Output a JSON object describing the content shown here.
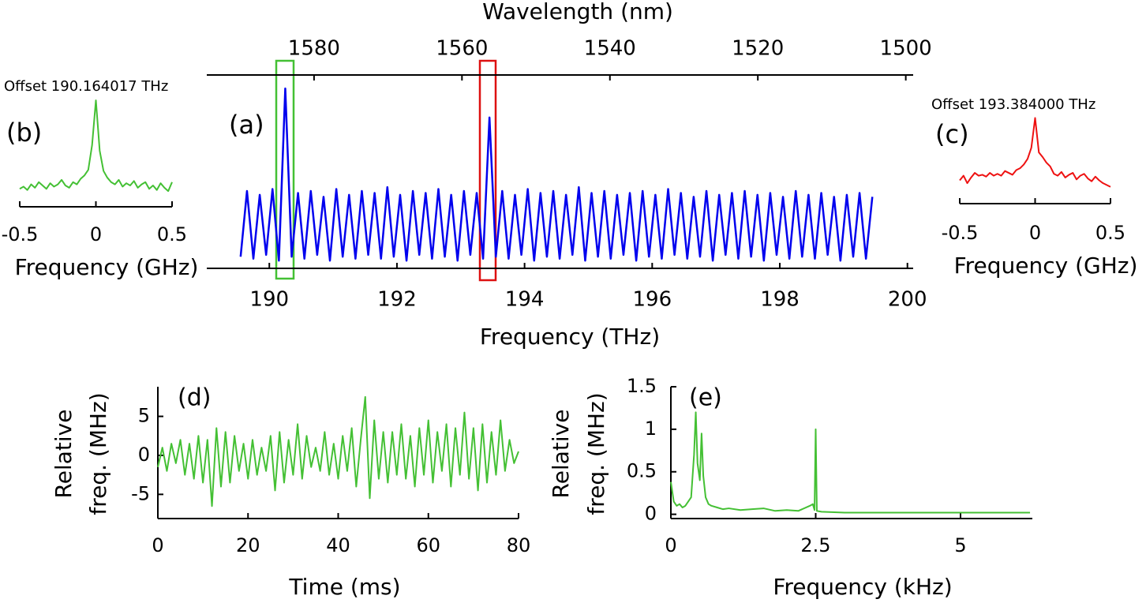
{
  "chart_data": [
    {
      "type": "line",
      "panel_label": "(a)",
      "xlabel": "Frequency (THz)",
      "x2label": "Wavelength (nm)",
      "xlim": [
        189.02,
        200.09
      ],
      "xticks": [
        190,
        192,
        194,
        196,
        198,
        200
      ],
      "x2lim": [
        1594.5,
        1499.0
      ],
      "x2ticks": [
        1580,
        1560,
        1540,
        1520,
        1500
      ],
      "ylim": [
        0,
        1
      ],
      "color": "#0000ee",
      "x": [
        189.55,
        189.65,
        189.75,
        189.85,
        189.95,
        190.05,
        190.15,
        190.25,
        190.35,
        190.45,
        190.55,
        190.65,
        190.75,
        190.85,
        190.95,
        191.05,
        191.15,
        191.25,
        191.35,
        191.45,
        191.55,
        191.65,
        191.75,
        191.85,
        191.95,
        192.05,
        192.15,
        192.25,
        192.35,
        192.45,
        192.55,
        192.65,
        192.75,
        192.85,
        192.95,
        193.05,
        193.15,
        193.25,
        193.35,
        193.45,
        193.55,
        193.65,
        193.75,
        193.85,
        193.95,
        194.05,
        194.15,
        194.25,
        194.35,
        194.45,
        194.55,
        194.65,
        194.75,
        194.85,
        194.95,
        195.05,
        195.15,
        195.25,
        195.35,
        195.45,
        195.55,
        195.65,
        195.75,
        195.85,
        195.95,
        196.05,
        196.15,
        196.25,
        196.35,
        196.45,
        196.55,
        196.65,
        196.75,
        196.85,
        196.95,
        197.05,
        197.15,
        197.25,
        197.35,
        197.45,
        197.55,
        197.65,
        197.75,
        197.85,
        197.95,
        198.05,
        198.15,
        198.25,
        198.35,
        198.45,
        198.55,
        198.65,
        198.75,
        198.85,
        198.95,
        199.05,
        199.15,
        199.25,
        199.35,
        199.45
      ],
      "values": [
        0.06,
        0.4,
        0.05,
        0.38,
        0.07,
        0.41,
        0.04,
        0.93,
        0.06,
        0.39,
        0.05,
        0.4,
        0.07,
        0.37,
        0.04,
        0.41,
        0.06,
        0.38,
        0.05,
        0.4,
        0.07,
        0.39,
        0.05,
        0.42,
        0.06,
        0.38,
        0.04,
        0.4,
        0.07,
        0.39,
        0.05,
        0.41,
        0.06,
        0.38,
        0.04,
        0.4,
        0.07,
        0.39,
        0.05,
        0.78,
        0.06,
        0.4,
        0.05,
        0.38,
        0.07,
        0.41,
        0.04,
        0.39,
        0.06,
        0.4,
        0.05,
        0.38,
        0.07,
        0.42,
        0.04,
        0.39,
        0.06,
        0.4,
        0.05,
        0.38,
        0.07,
        0.39,
        0.04,
        0.4,
        0.06,
        0.38,
        0.05,
        0.41,
        0.07,
        0.39,
        0.05,
        0.37,
        0.06,
        0.4,
        0.04,
        0.38,
        0.07,
        0.39,
        0.05,
        0.4,
        0.06,
        0.38,
        0.04,
        0.39,
        0.07,
        0.37,
        0.05,
        0.4,
        0.06,
        0.38,
        0.05,
        0.39,
        0.07,
        0.37,
        0.04,
        0.38,
        0.06,
        0.39,
        0.05,
        0.37
      ]
    },
    {
      "type": "line",
      "panel_label": "(b)",
      "annotation": "Offset 190.164017 THz",
      "xlabel": "Frequency (GHz)",
      "xlim": [
        -0.5,
        0.5
      ],
      "xticks": [
        -0.5,
        0,
        0.5
      ],
      "ylim": [
        0,
        1
      ],
      "color": "#44c034",
      "x": [
        -0.5,
        -0.475,
        -0.45,
        -0.425,
        -0.4,
        -0.375,
        -0.35,
        -0.325,
        -0.3,
        -0.275,
        -0.25,
        -0.225,
        -0.2,
        -0.175,
        -0.15,
        -0.125,
        -0.1,
        -0.075,
        -0.05,
        -0.025,
        0,
        0.025,
        0.05,
        0.075,
        0.1,
        0.125,
        0.15,
        0.175,
        0.2,
        0.225,
        0.25,
        0.275,
        0.3,
        0.325,
        0.35,
        0.375,
        0.4,
        0.425,
        0.45,
        0.475,
        0.5
      ],
      "values": [
        0.16,
        0.18,
        0.15,
        0.2,
        0.17,
        0.22,
        0.19,
        0.16,
        0.21,
        0.18,
        0.2,
        0.24,
        0.19,
        0.17,
        0.22,
        0.2,
        0.25,
        0.28,
        0.33,
        0.55,
        0.95,
        0.5,
        0.32,
        0.26,
        0.22,
        0.2,
        0.24,
        0.18,
        0.21,
        0.19,
        0.23,
        0.17,
        0.2,
        0.22,
        0.16,
        0.19,
        0.15,
        0.21,
        0.17,
        0.14,
        0.22
      ]
    },
    {
      "type": "line",
      "panel_label": "(c)",
      "annotation": "Offset 193.384000 THz",
      "xlabel": "Frequency (GHz)",
      "xlim": [
        -0.5,
        0.5
      ],
      "xticks": [
        -0.5,
        0,
        0.5
      ],
      "ylim": [
        0,
        1
      ],
      "color": "#ee1111",
      "x": [
        -0.5,
        -0.475,
        -0.45,
        -0.425,
        -0.4,
        -0.375,
        -0.35,
        -0.325,
        -0.3,
        -0.275,
        -0.25,
        -0.225,
        -0.2,
        -0.175,
        -0.15,
        -0.125,
        -0.1,
        -0.075,
        -0.05,
        -0.025,
        0,
        0.025,
        0.05,
        0.075,
        0.1,
        0.125,
        0.15,
        0.175,
        0.2,
        0.225,
        0.25,
        0.275,
        0.3,
        0.325,
        0.35,
        0.375,
        0.4,
        0.425,
        0.45,
        0.475,
        0.5
      ],
      "values": [
        0.25,
        0.3,
        0.22,
        0.28,
        0.33,
        0.3,
        0.31,
        0.29,
        0.33,
        0.3,
        0.32,
        0.3,
        0.35,
        0.33,
        0.31,
        0.36,
        0.38,
        0.42,
        0.48,
        0.6,
        0.92,
        0.55,
        0.5,
        0.44,
        0.4,
        0.32,
        0.3,
        0.34,
        0.28,
        0.31,
        0.33,
        0.26,
        0.3,
        0.32,
        0.27,
        0.24,
        0.29,
        0.25,
        0.22,
        0.2,
        0.18
      ]
    },
    {
      "type": "line",
      "panel_label": "(d)",
      "xlabel": "Time (ms)",
      "ylabel": [
        "Relative",
        "freq. (MHz)"
      ],
      "xlim": [
        0,
        80
      ],
      "xticks": [
        0,
        20,
        40,
        60,
        80
      ],
      "ylim": [
        -8.1,
        8.8
      ],
      "yticks": [
        -5,
        0,
        5
      ],
      "color": "#44c034",
      "x": [
        0,
        1,
        2,
        3,
        4,
        5,
        6,
        7,
        8,
        9,
        10,
        11,
        12,
        13,
        14,
        15,
        16,
        17,
        18,
        19,
        20,
        21,
        22,
        23,
        24,
        25,
        26,
        27,
        28,
        29,
        30,
        31,
        32,
        33,
        34,
        35,
        36,
        37,
        38,
        39,
        40,
        41,
        42,
        43,
        44,
        45,
        46,
        47,
        48,
        49,
        50,
        51,
        52,
        53,
        54,
        55,
        56,
        57,
        58,
        59,
        60,
        61,
        62,
        63,
        64,
        65,
        66,
        67,
        68,
        69,
        70,
        71,
        72,
        73,
        74,
        75,
        76,
        77,
        78,
        79,
        80
      ],
      "values": [
        -1.5,
        1.0,
        -2.0,
        1.5,
        -1.0,
        2.0,
        -2.5,
        1.5,
        -3.0,
        2.5,
        -3.5,
        2.0,
        -6.5,
        3.5,
        -4.0,
        3.0,
        -3.5,
        2.5,
        -2.0,
        1.5,
        -3.0,
        2.0,
        -2.5,
        1.0,
        -2.0,
        2.5,
        -4.5,
        3.0,
        -3.5,
        2.0,
        -2.5,
        4.0,
        -3.0,
        2.5,
        -1.5,
        1.0,
        -2.0,
        3.0,
        -2.5,
        1.5,
        -3.0,
        2.5,
        -2.0,
        3.5,
        -4.0,
        2.0,
        7.5,
        -5.5,
        4.5,
        -3.0,
        3.0,
        -3.5,
        3.0,
        -2.5,
        4.0,
        -3.0,
        2.5,
        -4.0,
        3.5,
        -2.5,
        4.5,
        -3.5,
        3.0,
        -2.0,
        4.0,
        -4.0,
        3.5,
        -2.5,
        5.5,
        -3.0,
        3.5,
        -4.5,
        4.0,
        -3.5,
        3.0,
        -2.5,
        4.5,
        -2.0,
        2.0,
        -1.0,
        0.5
      ]
    },
    {
      "type": "line",
      "panel_label": "(e)",
      "xlabel": "Frequency (kHz)",
      "ylabel": [
        "Relative",
        "freq. (MHz)"
      ],
      "xlim": [
        0,
        6.24
      ],
      "xticks": [
        0,
        2.5,
        5
      ],
      "ylim": [
        -0.05,
        1.5
      ],
      "yticks": [
        0,
        0.5,
        1,
        1.5
      ],
      "color": "#44c034",
      "x": [
        0,
        0.05,
        0.1,
        0.15,
        0.2,
        0.25,
        0.3,
        0.35,
        0.4,
        0.43,
        0.46,
        0.5,
        0.53,
        0.56,
        0.6,
        0.65,
        0.7,
        0.8,
        0.9,
        1.0,
        1.2,
        1.4,
        1.6,
        1.8,
        2.0,
        2.2,
        2.4,
        2.45,
        2.48,
        2.5,
        2.52,
        2.6,
        3.0,
        4.0,
        5.0,
        6.2
      ],
      "values": [
        0.38,
        0.15,
        0.1,
        0.12,
        0.08,
        0.1,
        0.15,
        0.2,
        0.7,
        1.2,
        0.6,
        0.4,
        0.95,
        0.45,
        0.2,
        0.12,
        0.1,
        0.08,
        0.06,
        0.07,
        0.05,
        0.06,
        0.07,
        0.04,
        0.05,
        0.04,
        0.1,
        0.12,
        0.05,
        1.0,
        0.04,
        0.03,
        0.02,
        0.02,
        0.02,
        0.02
      ]
    }
  ]
}
